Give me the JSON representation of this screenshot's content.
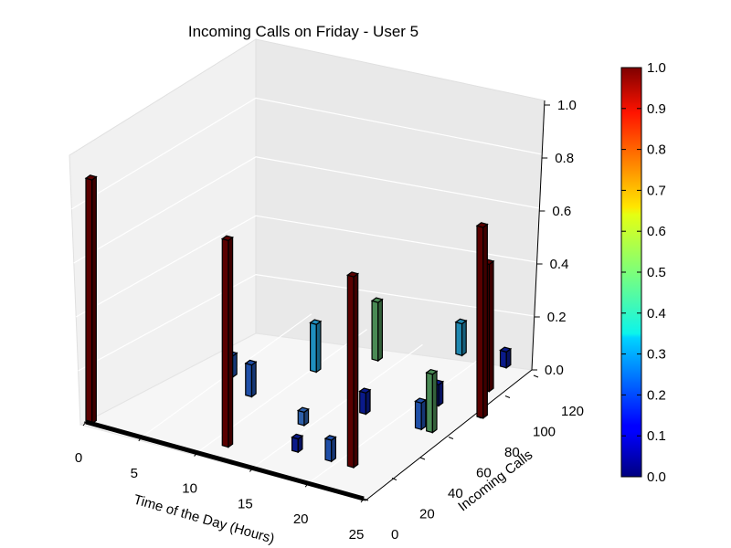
{
  "chart_data": {
    "type": "bar3d",
    "title": "Incoming Calls on Friday - User 5",
    "xlabel": "Time of the Day (Hours)",
    "ylabel": "Incoming Calls",
    "zlabel": "",
    "xlim": [
      0,
      25
    ],
    "ylim": [
      0,
      120
    ],
    "zlim": [
      0,
      1.0
    ],
    "x_ticks": [
      "0",
      "5",
      "10",
      "15",
      "20",
      "25"
    ],
    "y_ticks": [
      "0",
      "20",
      "40",
      "60",
      "80",
      "100",
      "120"
    ],
    "z_ticks": [
      "0.0",
      "0.2",
      "0.4",
      "0.6",
      "0.8",
      "1.0"
    ],
    "colormap": "jet",
    "colorbar": {
      "range": [
        0.0,
        1.0
      ],
      "ticks": [
        "0.0",
        "0.1",
        "0.2",
        "0.3",
        "0.4",
        "0.5",
        "0.6",
        "0.7",
        "0.8",
        "0.9",
        "1.0"
      ]
    },
    "grid": true,
    "bars": [
      {
        "x": 0,
        "y": 0,
        "z": 0.92,
        "color": "#5a0000"
      },
      {
        "x": 5,
        "y": 60,
        "z": 0.08,
        "color": "#1f4fa8"
      },
      {
        "x": 8,
        "y": 50,
        "z": 0.12,
        "color": "#1f4fa8"
      },
      {
        "x": 10,
        "y": 80,
        "z": 0.18,
        "color": "#1f8fbf"
      },
      {
        "x": 13,
        "y": 100,
        "z": 0.22,
        "color": "#4a8a55"
      },
      {
        "x": 11,
        "y": 10,
        "z": 0.78,
        "color": "#5a0000"
      },
      {
        "x": 14,
        "y": 40,
        "z": 0.05,
        "color": "#2e5fa8"
      },
      {
        "x": 16,
        "y": 20,
        "z": 0.05,
        "color": "#0a1a8a"
      },
      {
        "x": 17,
        "y": 60,
        "z": 0.08,
        "color": "#0a1a8a"
      },
      {
        "x": 18,
        "y": 120,
        "z": 0.12,
        "color": "#2088b0"
      },
      {
        "x": 19,
        "y": 20,
        "z": 0.08,
        "color": "#1f4fa8"
      },
      {
        "x": 20,
        "y": 120,
        "z": 0.22,
        "color": "#4a8a55"
      },
      {
        "x": 21,
        "y": 80,
        "z": 0.08,
        "color": "#0a1a8a"
      },
      {
        "x": 22,
        "y": 120,
        "z": 0.06,
        "color": "#0a1a8a"
      },
      {
        "x": 22,
        "y": 60,
        "z": 0.1,
        "color": "#1f4fa8"
      },
      {
        "x": 21,
        "y": 20,
        "z": 0.72,
        "color": "#5a0000"
      },
      {
        "x": 23,
        "y": 60,
        "z": 0.22,
        "color": "#4a8a55"
      },
      {
        "x": 23,
        "y": 100,
        "z": 0.48,
        "color": "#5a0000"
      },
      {
        "x": 25,
        "y": 80,
        "z": 0.72,
        "color": "#5a0000"
      }
    ]
  }
}
